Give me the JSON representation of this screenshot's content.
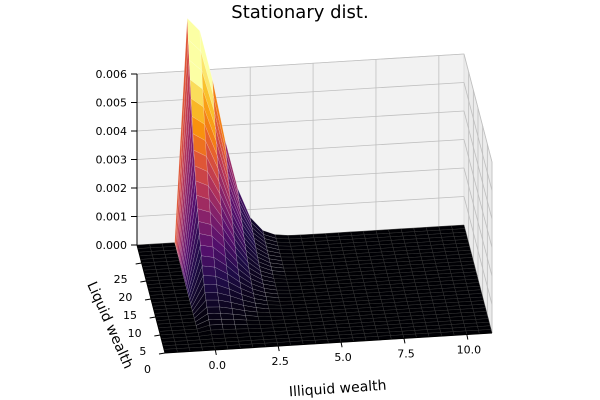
{
  "chart_data": {
    "type": "surface",
    "title": "Stationary dist.",
    "xlabel": "Illiquid wealth",
    "ylabel": "Liquid wealth",
    "zlabel": "",
    "x_ticks": [
      "0.0",
      "2.5",
      "5.0",
      "7.5",
      "10.0"
    ],
    "y_ticks": [
      "0",
      "5",
      "10",
      "15",
      "20",
      "25"
    ],
    "z_ticks": [
      "0.000",
      "0.001",
      "0.002",
      "0.003",
      "0.004",
      "0.005",
      "0.006"
    ],
    "xlim": [
      -2,
      11
    ],
    "ylim": [
      0,
      30
    ],
    "zlim": [
      0,
      0.006
    ],
    "grid": true,
    "colormap": "inferno",
    "surface": {
      "x_range": [
        -2,
        11
      ],
      "y_range": [
        0,
        30
      ],
      "peak_x": 0.1,
      "peak_y": 27,
      "peak_z": 0.0061
    }
  }
}
